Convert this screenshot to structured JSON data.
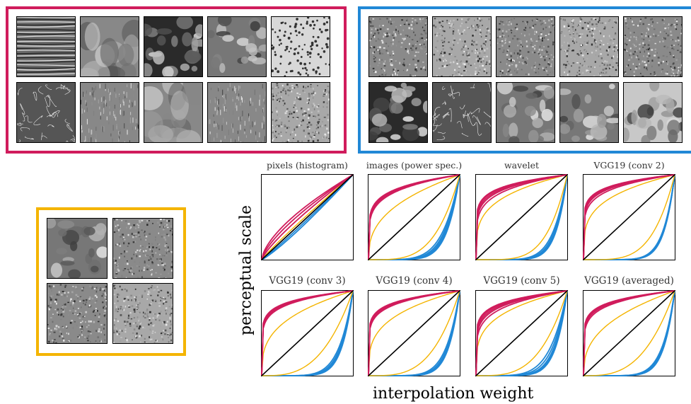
{
  "colors": {
    "group_red": "#d01c5c",
    "group_blue": "#2188d6",
    "group_yellow": "#f4b400",
    "diagonal": "#000000"
  },
  "figure": {
    "ylabel": "perceptual scale",
    "xlabel": "interpolation weight"
  },
  "chart_data": [
    {
      "type": "line",
      "title": "pixels (histogram)",
      "xlim": [
        0,
        1
      ],
      "ylim": [
        0,
        1
      ],
      "grid": false,
      "series_groups": [
        {
          "color": "group_red",
          "curvatures": [
            0.03,
            0.05,
            0.07
          ]
        },
        {
          "color": "group_yellow",
          "curvatures": [
            0.01
          ]
        },
        {
          "color": "group_blue",
          "curvatures": [
            -0.01,
            -0.02
          ]
        }
      ]
    },
    {
      "type": "line",
      "title": "images (power spec.)",
      "xlim": [
        0,
        1
      ],
      "ylim": [
        0,
        1
      ],
      "grid": false,
      "series_groups": [
        {
          "color": "group_red",
          "curvatures": [
            0.55,
            0.6,
            0.62,
            0.65,
            0.68
          ]
        },
        {
          "color": "group_yellow",
          "curvatures": [
            0.2,
            -0.35
          ]
        },
        {
          "color": "group_blue",
          "curvatures": [
            -0.55,
            -0.62,
            -0.68,
            -0.72,
            -0.78
          ]
        }
      ]
    },
    {
      "type": "line",
      "title": "wavelet",
      "xlim": [
        0,
        1
      ],
      "ylim": [
        0,
        1
      ],
      "grid": false,
      "series_groups": [
        {
          "color": "group_red",
          "curvatures": [
            0.55,
            0.65,
            0.72,
            0.8,
            0.85
          ]
        },
        {
          "color": "group_yellow",
          "curvatures": [
            0.35,
            -0.45
          ]
        },
        {
          "color": "group_blue",
          "curvatures": [
            -0.7,
            -0.78,
            -0.84,
            -0.9,
            -0.92
          ]
        }
      ]
    },
    {
      "type": "line",
      "title": "VGG19 (conv 2)",
      "xlim": [
        0,
        1
      ],
      "ylim": [
        0,
        1
      ],
      "grid": false,
      "series_groups": [
        {
          "color": "group_red",
          "curvatures": [
            0.65,
            0.75,
            0.82,
            0.88,
            0.92
          ]
        },
        {
          "color": "group_yellow",
          "curvatures": [
            0.35,
            -0.4
          ]
        },
        {
          "color": "group_blue",
          "curvatures": [
            -0.85,
            -0.9,
            -0.93,
            -0.95,
            -0.96
          ]
        }
      ]
    },
    {
      "type": "line",
      "title": "VGG19 (conv 3)",
      "xlim": [
        0,
        1
      ],
      "ylim": [
        0,
        1
      ],
      "grid": false,
      "series_groups": [
        {
          "color": "group_red",
          "curvatures": [
            0.75,
            0.82,
            0.87,
            0.91,
            0.94
          ]
        },
        {
          "color": "group_yellow",
          "curvatures": [
            0.25,
            -0.25
          ]
        },
        {
          "color": "group_blue",
          "curvatures": [
            -0.7,
            -0.78,
            -0.84,
            -0.88,
            -0.92
          ]
        }
      ]
    },
    {
      "type": "line",
      "title": "VGG19 (conv 4)",
      "xlim": [
        0,
        1
      ],
      "ylim": [
        0,
        1
      ],
      "grid": false,
      "series_groups": [
        {
          "color": "group_red",
          "curvatures": [
            0.75,
            0.82,
            0.87,
            0.9,
            0.93
          ]
        },
        {
          "color": "group_yellow",
          "curvatures": [
            0.3,
            -0.3
          ]
        },
        {
          "color": "group_blue",
          "curvatures": [
            -0.72,
            -0.8,
            -0.86,
            -0.9,
            -0.93
          ]
        }
      ]
    },
    {
      "type": "line",
      "title": "VGG19 (conv 5)",
      "xlim": [
        0,
        1
      ],
      "ylim": [
        0,
        1
      ],
      "grid": false,
      "series_groups": [
        {
          "color": "group_red",
          "curvatures": [
            0.55,
            0.65,
            0.72,
            0.8,
            0.88
          ]
        },
        {
          "color": "group_yellow",
          "curvatures": [
            0.35,
            -0.3
          ]
        },
        {
          "color": "group_blue",
          "curvatures": [
            -0.55,
            -0.65,
            -0.75,
            -0.82,
            -0.88
          ]
        }
      ]
    },
    {
      "type": "line",
      "title": "VGG19 (averaged)",
      "xlim": [
        0,
        1
      ],
      "ylim": [
        0,
        1
      ],
      "grid": false,
      "series_groups": [
        {
          "color": "group_red",
          "curvatures": [
            0.72,
            0.8,
            0.86,
            0.9,
            0.93
          ]
        },
        {
          "color": "group_yellow",
          "curvatures": [
            0.2,
            -0.25
          ]
        },
        {
          "color": "group_blue",
          "curvatures": [
            -0.78,
            -0.84,
            -0.88,
            -0.92,
            -0.94
          ]
        }
      ]
    }
  ]
}
